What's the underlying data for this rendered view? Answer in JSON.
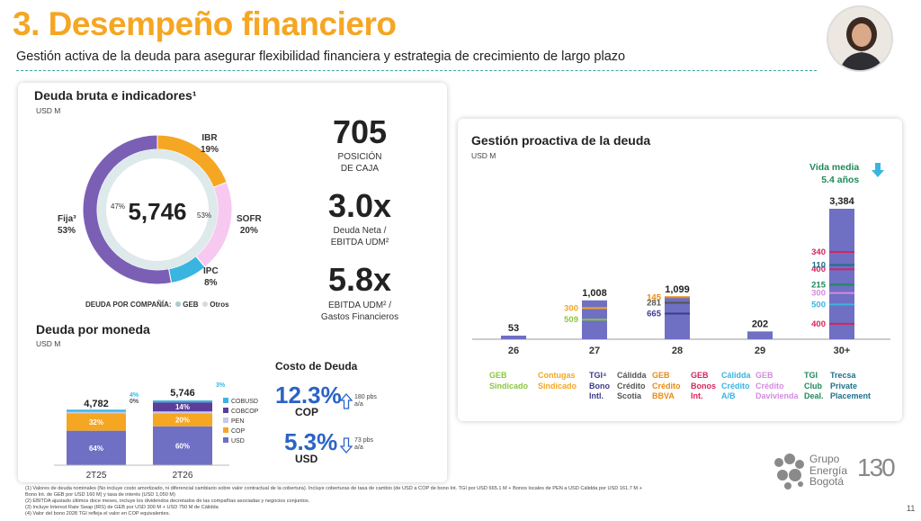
{
  "header": {
    "title": "3. Desempeño financiero",
    "subtitle": "Gestión activa de la deuda para asegurar flexibilidad financiera y estrategia de crecimiento de largo plazo"
  },
  "debt_card": {
    "title": "Deuda bruta e indicadores¹",
    "unit": "USD M",
    "total": "5,746",
    "inner_left_pct": "47%",
    "inner_right_pct": "53%",
    "legend_label": "DEUDA POR COMPAÑÍA:",
    "legend_geb": "GEB",
    "legend_otros": "Otros",
    "segments": [
      {
        "name": "Fija³",
        "value": "53%"
      },
      {
        "name": "IBR",
        "value": "19%"
      },
      {
        "name": "SOFR",
        "value": "20%"
      },
      {
        "name": "IPC",
        "value": "8%"
      }
    ],
    "colors": {
      "fija": "#7b5fb5",
      "ibr": "#f5a623",
      "sofr": "#f7c9f0",
      "ipc": "#39b5e0"
    }
  },
  "kpis": [
    {
      "value": "705",
      "line1": "POSICIÓN",
      "line2": "DE CAJA",
      "color": "#7b5fb5"
    },
    {
      "value": "3.0x",
      "line1": "Deuda Neta /",
      "line2": "EBITDA UDM²",
      "color": "#f7c9f0"
    },
    {
      "value": "5.8x",
      "line1": "EBITDA UDM² /",
      "line2": "Gastos Financieros",
      "color": "#1f8a5a"
    }
  ],
  "currency_card": {
    "title": "Deuda por moneda",
    "unit": "USD M",
    "legend": [
      "COBUSD",
      "COBCOP",
      "PEN",
      "COP",
      "USD"
    ]
  },
  "cost_card": {
    "title": "Costo de Deuda",
    "cop_rate": "12.3%",
    "cop_label": "COP",
    "cop_bps": "180 pbs",
    "cop_bps_unit": "a/a",
    "usd_rate": "5.3%",
    "usd_label": "USD",
    "usd_bps": "73 pbs",
    "usd_bps_unit": "a/a"
  },
  "maturity_card": {
    "title": "Gestión proactiva de la deuda",
    "unit": "USD M",
    "vida_media_1": "Vida media",
    "vida_media_2": "5.4 años",
    "labels": [
      {
        "text": [
          "GEB",
          "Sindicado"
        ],
        "color": "#8cc63f"
      },
      {
        "text": [
          "Contugas",
          "Sindicado"
        ],
        "color": "#f5a623"
      },
      {
        "text": [
          "TGI⁴",
          "Bono",
          "Intl."
        ],
        "color": "#3b3b8f"
      },
      {
        "text": [
          "Cálidda",
          "Crédito",
          "Scotia"
        ],
        "color": "#555555"
      },
      {
        "text": [
          "GEB",
          "Crédito",
          "BBVA"
        ],
        "color": "#e98a15"
      },
      {
        "text": [
          "GEB",
          "Bonos",
          "Int."
        ],
        "color": "#d6245c"
      },
      {
        "text": [
          "Cálidda",
          "Crédito",
          "A/B"
        ],
        "color": "#39b5e0"
      },
      {
        "text": [
          "GEB",
          "Crédito",
          "Davivienda"
        ],
        "color": "#d48ae0"
      },
      {
        "text": [
          "TGI",
          "Club",
          "Deal."
        ],
        "color": "#1f8a5a"
      },
      {
        "text": [
          "Trecsa",
          "Private",
          "Placement"
        ],
        "color": "#1f6f8a"
      }
    ]
  },
  "chart_data": [
    {
      "type": "pie",
      "title": "Deuda bruta e indicadores¹",
      "categories": [
        "Fija³",
        "IBR",
        "SOFR",
        "IPC"
      ],
      "values": [
        53,
        19,
        20,
        8
      ],
      "total": 5746
    },
    {
      "type": "bar",
      "title": "Deuda por moneda",
      "ylabel": "USD M",
      "categories": [
        "2T25",
        "2T26"
      ],
      "totals": [
        4782,
        5746
      ],
      "series": [
        {
          "name": "USD",
          "values": [
            64,
            60
          ],
          "color": "#6f6fc4"
        },
        {
          "name": "COP",
          "values": [
            32,
            20
          ],
          "color": "#f5a623"
        },
        {
          "name": "PEN",
          "values": [
            3,
            3
          ],
          "color": "#c8c8e8"
        },
        {
          "name": "COBCOP",
          "values": [
            0,
            14
          ],
          "color": "#5a3e9a"
        },
        {
          "name": "COBUSD",
          "values": [
            4,
            3
          ],
          "color": "#39b5e0"
        }
      ],
      "labels": [
        [
          "64%",
          "32%",
          "3%",
          "0%",
          "4%"
        ],
        [
          "60%",
          "20%",
          "3%",
          "14%",
          "3%"
        ]
      ]
    },
    {
      "type": "bar",
      "title": "Gestión proactiva de la deuda",
      "ylabel": "USD M",
      "categories": [
        "26",
        "27",
        "28",
        "29",
        "30+"
      ],
      "values": [
        53,
        1008,
        1099,
        202,
        3384
      ],
      "value_labels": [
        "53",
        "1,008",
        "1,099",
        "202",
        "3,384"
      ],
      "segments": {
        "27": [
          {
            "value": 509,
            "color": "#8cc63f"
          },
          {
            "value": 300,
            "color": "#f5a623"
          }
        ],
        "28": [
          {
            "value": 665,
            "color": "#3b3b8f"
          },
          {
            "value": 281,
            "color": "#555555"
          },
          {
            "value": 145,
            "color": "#e98a15"
          }
        ],
        "30+": [
          {
            "value": 400,
            "color": "#d6245c"
          },
          {
            "value": 500,
            "color": "#39b5e0"
          },
          {
            "value": 300,
            "color": "#d48ae0"
          },
          {
            "value": 215,
            "color": "#1f8a5a"
          },
          {
            "value": 400,
            "color": "#d6245c"
          },
          {
            "value": 110,
            "color": "#1f6f8a"
          },
          {
            "value": 340,
            "color": "#d6245c"
          }
        ]
      }
    }
  ],
  "footnotes": [
    "(1)  Valores de deuda nominales (No incluye costo amortizado, ni diferencial cambiario sobre valor contractual de la cobertura). Incluye coberturas de tasa de cambio (de USD a COP de bono Int. TGI por USD 665.1 M + Bonos locales de PEN a USD Cálidda por USD 161.7 M +",
    "      Bono Int. de GEB por USD 160 M) y tasa de interés (USD 1,050 M)",
    "(2)  EBITDA ajustado últimos doce meses, incluye los dividendos decretados de las compañías asociadas y negocios conjuntos.",
    "(3)  Incluye Interest Rate Swap (IRS) de GEB por USD 300 M + USD 750 M de Cálidda",
    "(4)  Valor del bono 2028 TGI refleja el valor en COP equivalentes."
  ],
  "logo": {
    "line1": "Grupo",
    "line2": "Energía",
    "line3": "Bogotá",
    "anniv": "130"
  },
  "page_number": "11"
}
